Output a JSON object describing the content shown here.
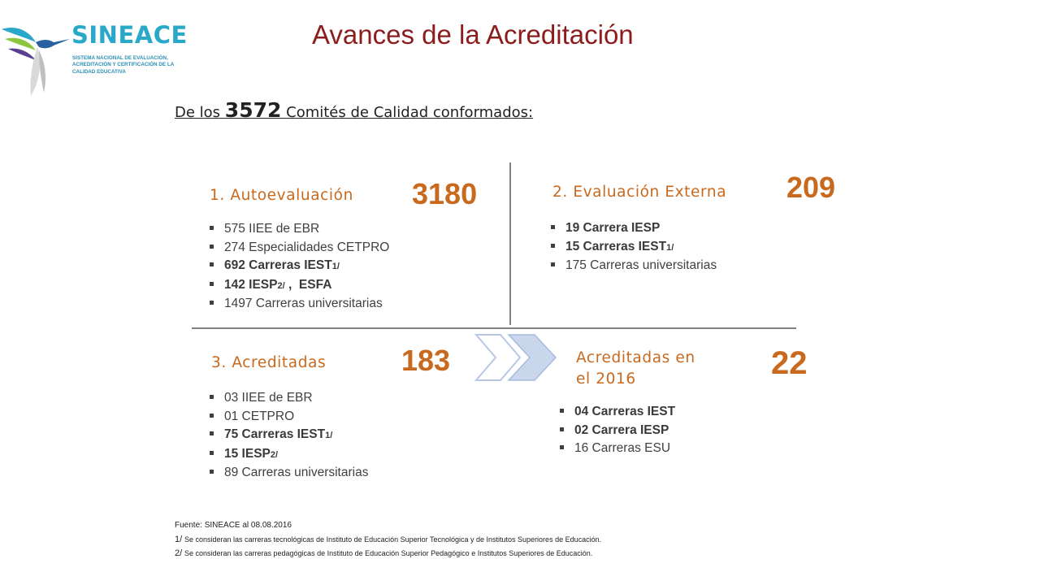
{
  "logo": {
    "name": "SINEACE",
    "tagline": "SISTEMA NACIONAL DE EVALUACIÓN, ACREDITACIÓN Y CERTIFICACIÓN DE LA CALIDAD EDUCATIVA"
  },
  "title": "Avances de la Acreditación",
  "subtitle": {
    "pre": "De los",
    "number": "3572",
    "post": "Comités de Calidad conformados:"
  },
  "sections": {
    "autoevaluacion": {
      "label": "1. Autoevaluación",
      "count": "3180",
      "items": [
        {
          "text": "575 IIEE de EBR"
        },
        {
          "text": "274 Especialidades CETPRO"
        },
        {
          "text": "692 Carreras IEST",
          "sup": "1/",
          "bold": true
        },
        {
          "text": "142 IESP",
          "sup": "2/",
          "tail": " ,  ESFA",
          "bold": true
        },
        {
          "text": "1497 Carreras universitarias"
        }
      ]
    },
    "evaluacion_externa": {
      "label": "2. Evaluación Externa",
      "count": "209",
      "items": [
        {
          "text": "19 Carrera IESP",
          "bold": true
        },
        {
          "text": "15 Carreras IEST",
          "sup": "1/",
          "bold": true
        },
        {
          "text": "175 Carreras universitarias"
        }
      ]
    },
    "acreditadas": {
      "label": "3. Acreditadas",
      "count": "183",
      "items": [
        {
          "text": "03 IIEE de EBR"
        },
        {
          "text": "01 CETPRO"
        },
        {
          "text": "75 Carreras IEST",
          "sup": "1/",
          "bold": true
        },
        {
          "text": "15 IESP",
          "sup": "2/",
          "bold": true
        },
        {
          "text": "89 Carreras universitarias"
        }
      ]
    },
    "acreditadas_2016": {
      "label_line1": "Acreditadas en",
      "label_line2": "el 2016",
      "count": "22",
      "items": [
        {
          "text": "04 Carreras IEST",
          "bold": true
        },
        {
          "text": "02 Carrera   IESP",
          "bold": true
        },
        {
          "text": "16 Carreras ESU"
        }
      ]
    }
  },
  "footer": {
    "source": "Fuente: SINEACE al  08.08.2016",
    "note1_mark": "1/",
    "note1": "Se consideran las carreras  tecnológicas  de Instituto  de Educación Superior Tecnológica  y de Institutos  Superiores de Educación.",
    "note2_mark": "2/",
    "note2": "Se consideran las  carreras  pedagógicas  de Instituto de Educación Superior Pedagógico  e Institutos Superiores de Educación."
  },
  "colors": {
    "title": "#8c1d1d",
    "accent": "#c8691e",
    "logo": "#2aa8c9",
    "arrow": "#c5d3ea"
  }
}
